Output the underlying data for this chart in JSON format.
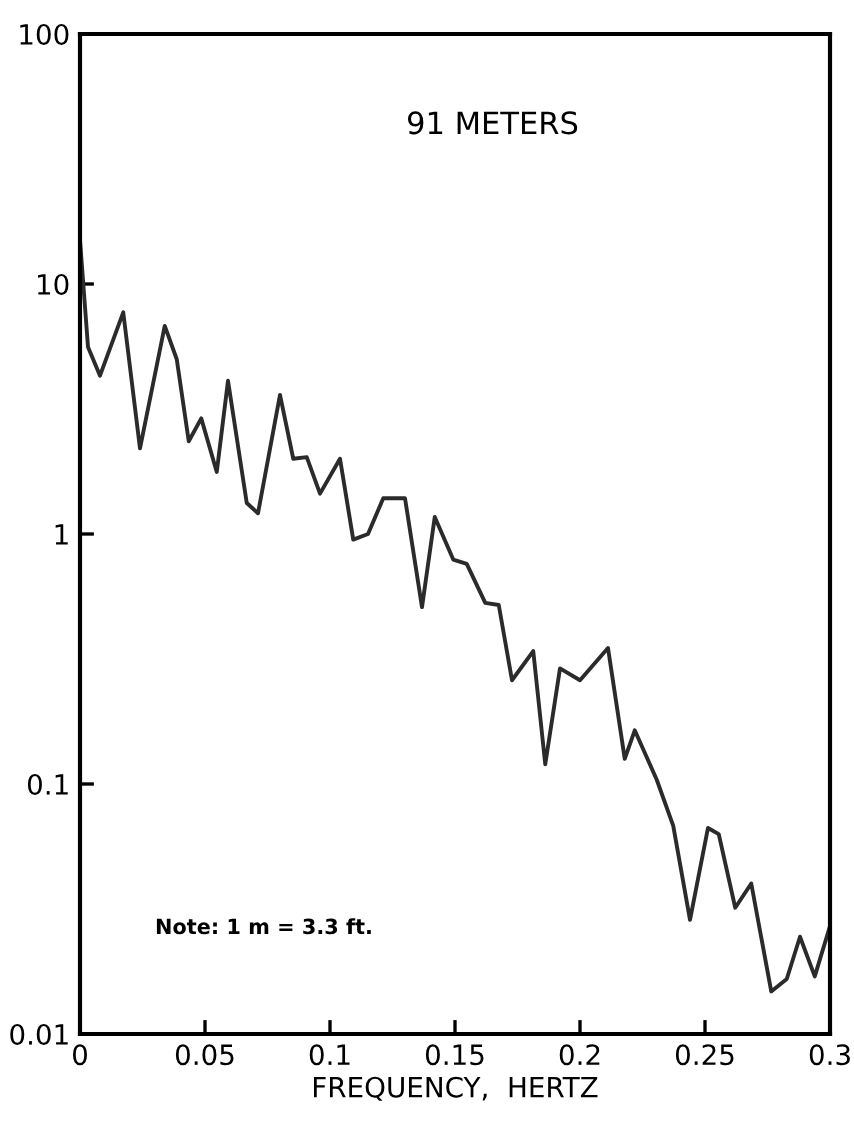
{
  "chart_data": {
    "type": "line",
    "xlabel": "FREQUENCY,  HERTZ",
    "log": "y",
    "annotations": [
      "91 METERS",
      "Note: 1 m = 3.3 ft."
    ],
    "xlim": [
      0,
      0.3
    ],
    "ylim": [
      0.01,
      100
    ],
    "xticks": [
      0,
      0.05,
      0.1,
      0.15,
      0.2,
      0.25,
      0.3
    ],
    "yticks": [
      0.01,
      0.1,
      1,
      10,
      100
    ],
    "grid": false,
    "legend": false,
    "marker": "none",
    "line_style": "solid",
    "series": [
      {
        "color": "#2b2b2b",
        "x": [
          0,
          0.0032,
          0.008,
          0.0173,
          0.024,
          0.0339,
          0.0387,
          0.0435,
          0.0485,
          0.0547,
          0.0592,
          0.0667,
          0.0712,
          0.08,
          0.0853,
          0.0907,
          0.096,
          0.104,
          0.1093,
          0.1152,
          0.1213,
          0.13,
          0.1368,
          0.1419,
          0.1493,
          0.1547,
          0.1621,
          0.1675,
          0.1728,
          0.1813,
          0.1861,
          0.192,
          0.2,
          0.2112,
          0.2179,
          0.2219,
          0.2307,
          0.2373,
          0.244,
          0.2512,
          0.2555,
          0.2621,
          0.2685,
          0.2765,
          0.2827,
          0.288,
          0.2939,
          0.3
        ],
        "values": [
          15,
          5.6,
          4.3,
          7.7,
          2.2,
          6.8,
          5.0,
          2.35,
          2.9,
          1.77,
          4.1,
          1.33,
          1.21,
          3.6,
          2.0,
          2.03,
          1.45,
          2.0,
          0.95,
          1.0,
          1.39,
          1.39,
          0.51,
          1.17,
          0.79,
          0.76,
          0.53,
          0.52,
          0.26,
          0.34,
          0.12,
          0.29,
          0.26,
          0.35,
          0.126,
          0.164,
          0.104,
          0.068,
          0.0286,
          0.0667,
          0.063,
          0.032,
          0.04,
          0.0148,
          0.0166,
          0.0245,
          0.017,
          0.027
        ]
      }
    ]
  }
}
